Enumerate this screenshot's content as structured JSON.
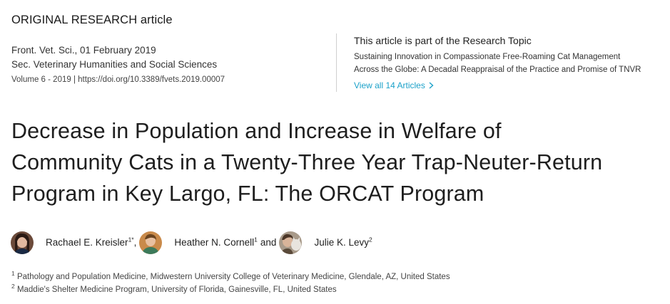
{
  "article_type": "ORIGINAL RESEARCH article",
  "meta": {
    "journal_date": "Front. Vet. Sci., 01 February 2019",
    "section": "Sec. Veterinary Humanities and Social Sciences",
    "volume": "Volume 6 - 2019",
    "volume_sep": " | ",
    "doi": "https://doi.org/10.3389/fvets.2019.00007"
  },
  "topic": {
    "heading": "This article is part of the Research Topic",
    "title_line1": "Sustaining Innovation in Compassionate Free-Roaming Cat Management",
    "title_line2": "Across the Globe: A Decadal Reappraisal of the Practice and Promise of TNVR",
    "view_all": "View all 14 Articles"
  },
  "title": {
    "line1": "Decrease in Population and Increase in Welfare of",
    "line2": "Community Cats in a Twenty-Three Year Trap-Neuter-Return",
    "line3": "Program in Key Largo, FL: The ORCAT Program"
  },
  "authors": [
    {
      "name": "Rachael E. Kreisler",
      "sup": "1*",
      "after": ","
    },
    {
      "name": "Heather N. Cornell",
      "sup": "1",
      "after": "and"
    },
    {
      "name": "Julie K. Levy",
      "sup": "2",
      "after": ""
    }
  ],
  "affiliations": [
    {
      "num": "1",
      "text": "Pathology and Population Medicine, Midwestern University College of Veterinary Medicine, Glendale, AZ, United States"
    },
    {
      "num": "2",
      "text": "Maddie's Shelter Medicine Program, University of Florida, Gainesville, FL, United States"
    }
  ],
  "colors": {
    "link": "#1ba1c9",
    "divider": "#cfcfcf"
  },
  "icons": {
    "view_all_chevron": "chevron-right-icon"
  }
}
